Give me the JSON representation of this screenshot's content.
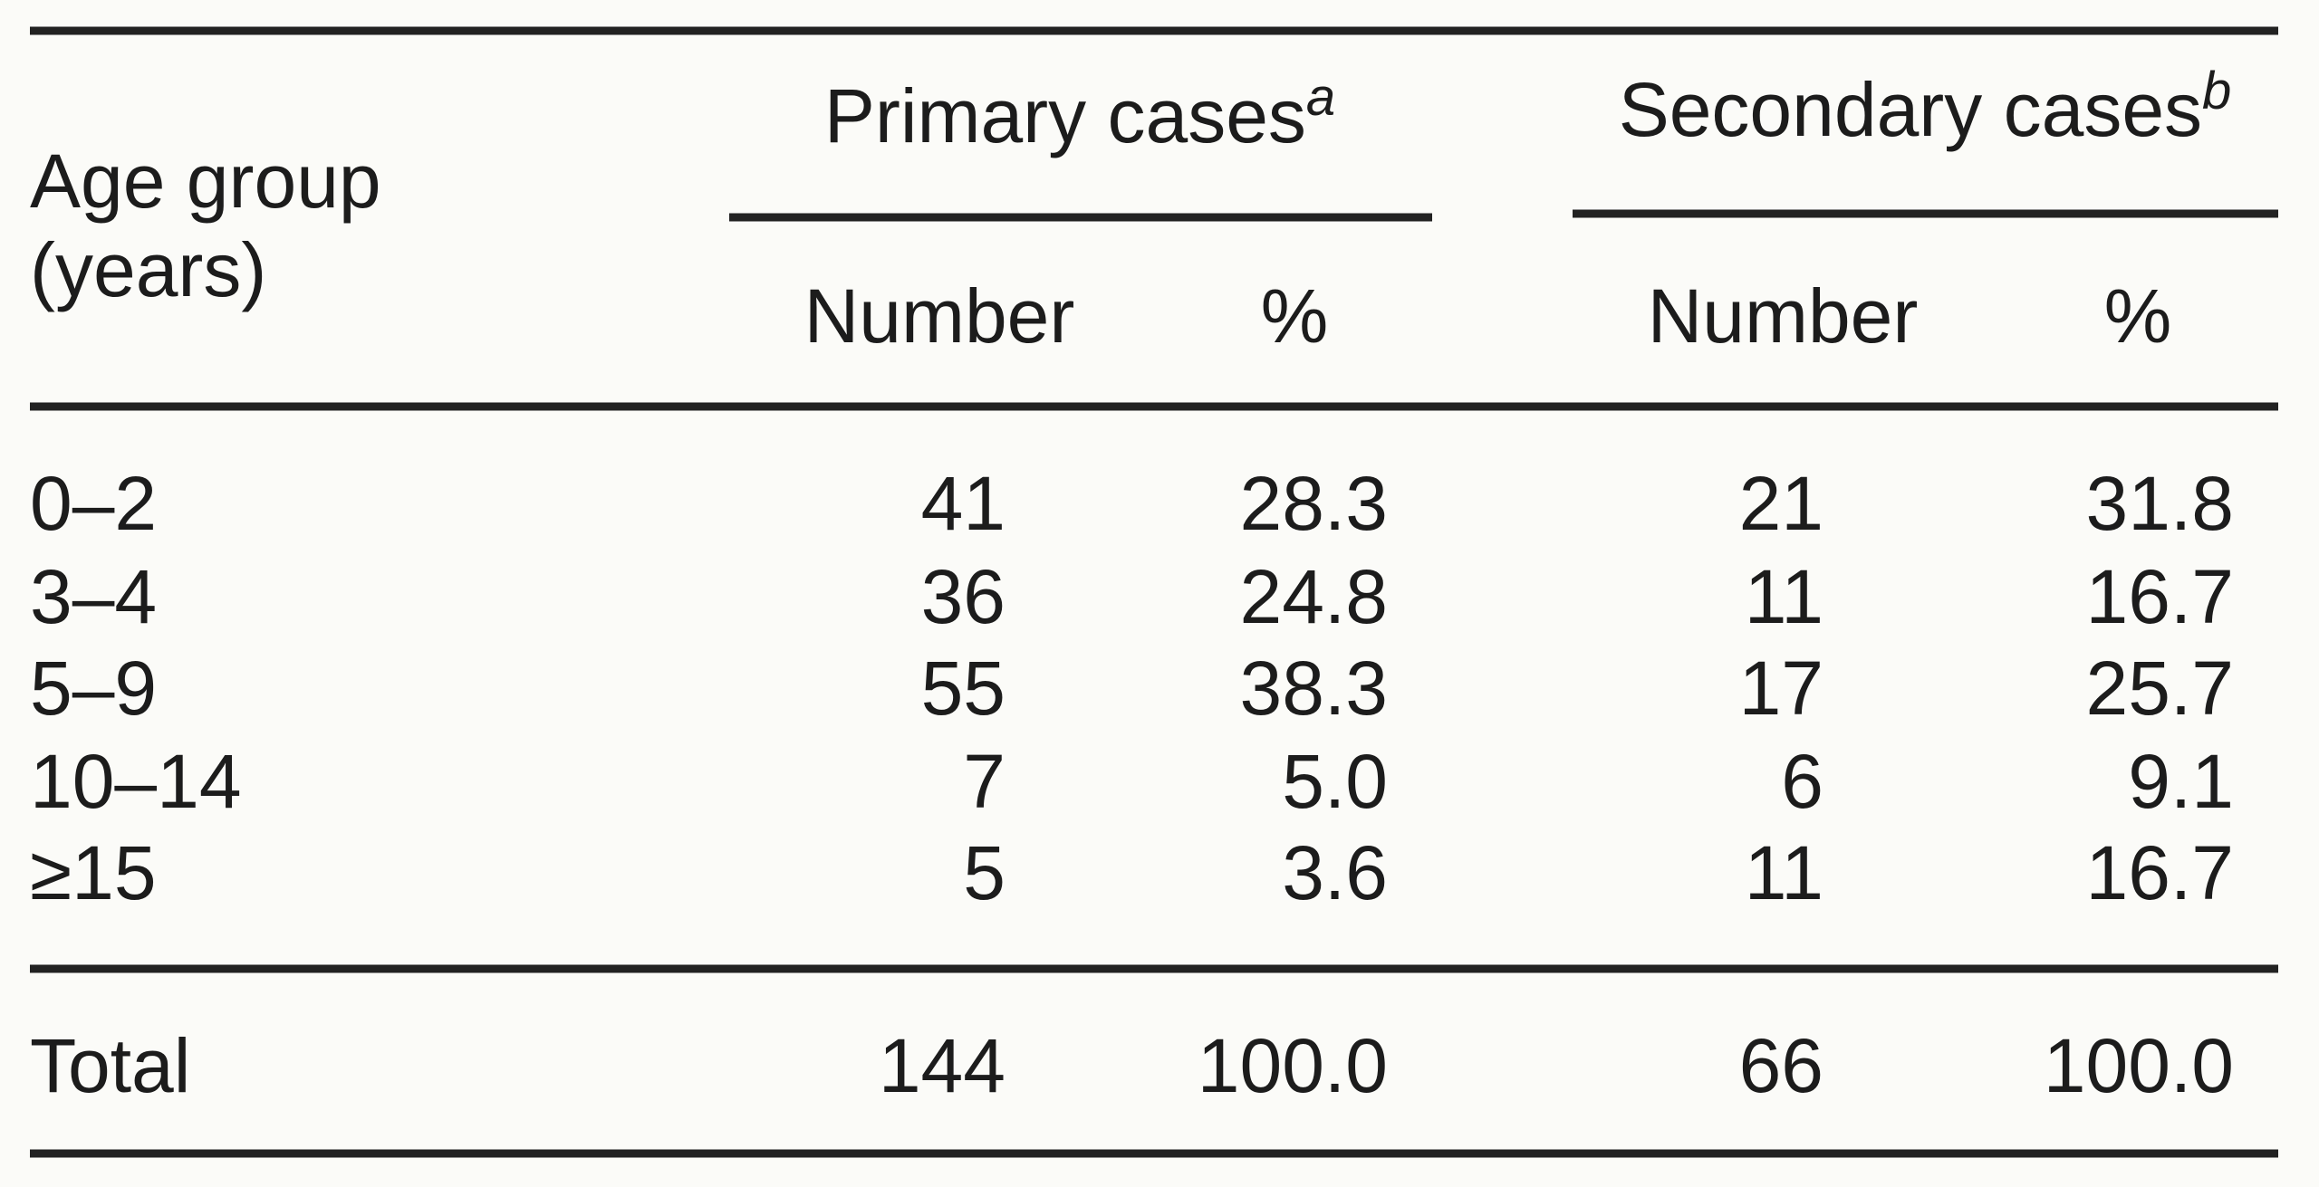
{
  "header": {
    "stub": [
      "Age group",
      "(years)"
    ],
    "groups": [
      {
        "label": "Primary cases",
        "note": "a",
        "columns": [
          "Number",
          "%"
        ]
      },
      {
        "label": "Secondary cases",
        "note": "b",
        "columns": [
          "Number",
          "%"
        ]
      }
    ]
  },
  "rows": [
    [
      "0–2",
      "41",
      "28.3",
      "21",
      "31.8"
    ],
    [
      "3–4",
      "36",
      "24.8",
      "11",
      "16.7"
    ],
    [
      "5–9",
      "55",
      "38.3",
      "17",
      "25.7"
    ],
    [
      "10–14",
      "7",
      "5.0",
      "6",
      "9.1"
    ],
    [
      "≥15",
      "5",
      "3.6",
      "11",
      "16.7"
    ]
  ],
  "total": [
    "Total",
    "144",
    "100.0",
    "66",
    "100.0"
  ]
}
